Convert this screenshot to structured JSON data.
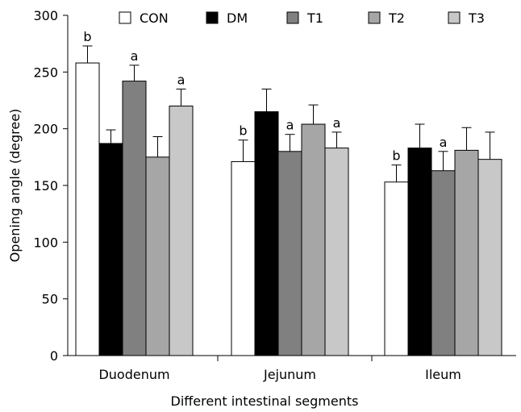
{
  "chart_data": {
    "type": "bar",
    "title": "",
    "xlabel": "Different intestinal segments",
    "ylabel": "Opening angle (degree)",
    "ylim": [
      0,
      300
    ],
    "yticks": [
      0,
      50,
      100,
      150,
      200,
      250,
      300
    ],
    "categories": [
      "Duodenum",
      "Jejunum",
      "Ileum"
    ],
    "legend_position": "top",
    "series": [
      {
        "name": "CON",
        "color": "#ffffff",
        "values": [
          258,
          171,
          153
        ],
        "errors": [
          15,
          19,
          15
        ],
        "labels": [
          "b",
          "b",
          "b"
        ]
      },
      {
        "name": "DM",
        "color": "#000000",
        "values": [
          187,
          215,
          183
        ],
        "errors": [
          12,
          20,
          21
        ],
        "labels": [
          "",
          "",
          ""
        ]
      },
      {
        "name": "T1",
        "color": "#808080",
        "values": [
          242,
          180,
          163
        ],
        "errors": [
          14,
          15,
          17
        ],
        "labels": [
          "a",
          "a",
          "a"
        ]
      },
      {
        "name": "T2",
        "color": "#a6a6a6",
        "values": [
          175,
          204,
          181
        ],
        "errors": [
          18,
          17,
          20
        ],
        "labels": [
          "",
          "",
          ""
        ]
      },
      {
        "name": "T3",
        "color": "#c8c8c8",
        "values": [
          220,
          183,
          173
        ],
        "errors": [
          15,
          14,
          24
        ],
        "labels": [
          "a",
          "a",
          ""
        ]
      }
    ]
  }
}
